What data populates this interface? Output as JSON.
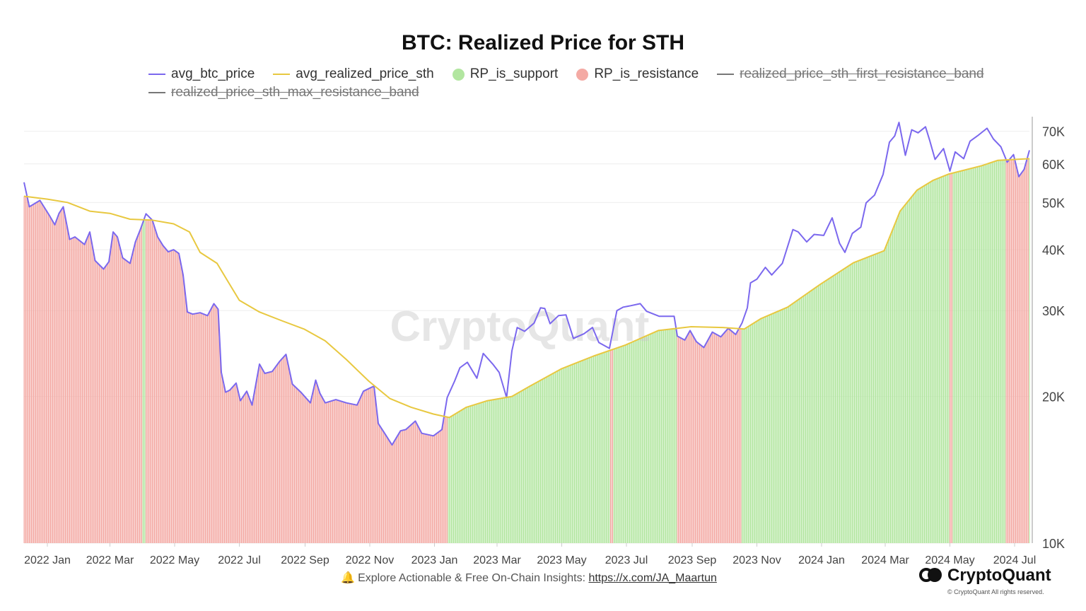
{
  "chart_data": {
    "type": "line",
    "title": "BTC: Realized Price for STH",
    "y_scale": "log",
    "ylim": [
      10000,
      75000
    ],
    "y_ticks": [
      {
        "value": 10000,
        "label": "10K"
      },
      {
        "value": 20000,
        "label": "20K"
      },
      {
        "value": 30000,
        "label": "30K"
      },
      {
        "value": 40000,
        "label": "40K"
      },
      {
        "value": 50000,
        "label": "50K"
      },
      {
        "value": 60000,
        "label": "60K"
      },
      {
        "value": 70000,
        "label": "70K"
      }
    ],
    "x_range": [
      "2021-12-10",
      "2024-07-15"
    ],
    "x_ticks": [
      {
        "date": "2022-01-01",
        "label": "2022 Jan"
      },
      {
        "date": "2022-03-01",
        "label": "2022 Mar"
      },
      {
        "date": "2022-05-01",
        "label": "2022 May"
      },
      {
        "date": "2022-07-01",
        "label": "2022 Jul"
      },
      {
        "date": "2022-09-01",
        "label": "2022 Sep"
      },
      {
        "date": "2022-11-01",
        "label": "2022 Nov"
      },
      {
        "date": "2023-01-01",
        "label": "2023 Jan"
      },
      {
        "date": "2023-03-01",
        "label": "2023 Mar"
      },
      {
        "date": "2023-05-01",
        "label": "2023 May"
      },
      {
        "date": "2023-07-01",
        "label": "2023 Jul"
      },
      {
        "date": "2023-09-01",
        "label": "2023 Sep"
      },
      {
        "date": "2023-11-01",
        "label": "2023 Nov"
      },
      {
        "date": "2024-01-01",
        "label": "2024 Jan"
      },
      {
        "date": "2024-03-01",
        "label": "2024 Mar"
      },
      {
        "date": "2024-05-01",
        "label": "2024 May"
      },
      {
        "date": "2024-07-01",
        "label": "2024 Jul"
      }
    ],
    "legend": [
      {
        "key": "avg_btc_price",
        "label": "avg_btc_price",
        "marker": "line",
        "color": "#7b68ee",
        "visible": true
      },
      {
        "key": "avg_realized_price_sth",
        "label": "avg_realized_price_sth",
        "marker": "line",
        "color": "#e8c840",
        "visible": true
      },
      {
        "key": "RP_is_support",
        "label": "RP_is_support",
        "marker": "dot",
        "color": "#b2e6a0",
        "visible": true
      },
      {
        "key": "RP_is_resistance",
        "label": "RP_is_resistance",
        "marker": "dot",
        "color": "#f4aaa4",
        "visible": true
      },
      {
        "key": "realized_price_sth_first_resistance_band",
        "label": "realized_price_sth_first_resistance_band",
        "marker": "line",
        "color": "#777777",
        "visible": false
      },
      {
        "key": "realized_price_sth_max_resistance_band",
        "label": "realized_price_sth_max_resistance_band",
        "marker": "line",
        "color": "#777777",
        "visible": false
      }
    ],
    "series": [
      {
        "name": "avg_btc_price",
        "color": "#7b68ee",
        "points": [
          [
            "2021-12-10",
            55000
          ],
          [
            "2021-12-15",
            49000
          ],
          [
            "2021-12-25",
            50500
          ],
          [
            "2022-01-03",
            47000
          ],
          [
            "2022-01-08",
            45000
          ],
          [
            "2022-01-12",
            47500
          ],
          [
            "2022-01-16",
            49000
          ],
          [
            "2022-01-22",
            42000
          ],
          [
            "2022-01-27",
            42500
          ],
          [
            "2022-02-05",
            41000
          ],
          [
            "2022-02-10",
            43500
          ],
          [
            "2022-02-15",
            38000
          ],
          [
            "2022-02-23",
            36500
          ],
          [
            "2022-02-28",
            37800
          ],
          [
            "2022-03-04",
            43500
          ],
          [
            "2022-03-08",
            42500
          ],
          [
            "2022-03-13",
            38500
          ],
          [
            "2022-03-20",
            37500
          ],
          [
            "2022-03-25",
            41500
          ],
          [
            "2022-03-30",
            44200
          ],
          [
            "2022-04-04",
            47400
          ],
          [
            "2022-04-10",
            46000
          ],
          [
            "2022-04-15",
            42500
          ],
          [
            "2022-04-20",
            40800
          ],
          [
            "2022-04-25",
            39600
          ],
          [
            "2022-04-30",
            40000
          ],
          [
            "2022-05-05",
            39300
          ],
          [
            "2022-05-09",
            35500
          ],
          [
            "2022-05-13",
            29800
          ],
          [
            "2022-05-18",
            29500
          ],
          [
            "2022-05-25",
            29700
          ],
          [
            "2022-06-01",
            29300
          ],
          [
            "2022-06-07",
            31000
          ],
          [
            "2022-06-11",
            30200
          ],
          [
            "2022-06-14",
            22400
          ],
          [
            "2022-06-18",
            20400
          ],
          [
            "2022-06-22",
            20600
          ],
          [
            "2022-06-28",
            21300
          ],
          [
            "2022-07-02",
            19600
          ],
          [
            "2022-07-08",
            20500
          ],
          [
            "2022-07-13",
            19200
          ],
          [
            "2022-07-20",
            23300
          ],
          [
            "2022-07-25",
            22300
          ],
          [
            "2022-08-01",
            22500
          ],
          [
            "2022-08-08",
            23600
          ],
          [
            "2022-08-14",
            24400
          ],
          [
            "2022-08-20",
            21200
          ],
          [
            "2022-08-28",
            20400
          ],
          [
            "2022-09-06",
            19400
          ],
          [
            "2022-09-11",
            21600
          ],
          [
            "2022-09-15",
            20300
          ],
          [
            "2022-09-20",
            19400
          ],
          [
            "2022-09-30",
            19700
          ],
          [
            "2022-10-10",
            19400
          ],
          [
            "2022-10-20",
            19200
          ],
          [
            "2022-10-26",
            20500
          ],
          [
            "2022-11-01",
            20800
          ],
          [
            "2022-11-05",
            21000
          ],
          [
            "2022-11-09",
            17600
          ],
          [
            "2022-11-15",
            16800
          ],
          [
            "2022-11-22",
            15900
          ],
          [
            "2022-11-30",
            17000
          ],
          [
            "2022-12-05",
            17100
          ],
          [
            "2022-12-14",
            17800
          ],
          [
            "2022-12-20",
            16800
          ],
          [
            "2022-12-31",
            16600
          ],
          [
            "2023-01-08",
            17100
          ],
          [
            "2023-01-13",
            19900
          ],
          [
            "2023-01-20",
            21500
          ],
          [
            "2023-01-25",
            22900
          ],
          [
            "2023-02-01",
            23500
          ],
          [
            "2023-02-10",
            21800
          ],
          [
            "2023-02-16",
            24500
          ],
          [
            "2023-02-25",
            23300
          ],
          [
            "2023-03-03",
            22400
          ],
          [
            "2023-03-10",
            19900
          ],
          [
            "2023-03-15",
            24800
          ],
          [
            "2023-03-20",
            27700
          ],
          [
            "2023-03-27",
            27200
          ],
          [
            "2023-04-05",
            28300
          ],
          [
            "2023-04-11",
            30400
          ],
          [
            "2023-04-15",
            30300
          ],
          [
            "2023-04-20",
            28200
          ],
          [
            "2023-04-28",
            29300
          ],
          [
            "2023-05-05",
            29400
          ],
          [
            "2023-05-12",
            26300
          ],
          [
            "2023-05-22",
            26900
          ],
          [
            "2023-05-30",
            27700
          ],
          [
            "2023-06-05",
            25800
          ],
          [
            "2023-06-15",
            25100
          ],
          [
            "2023-06-22",
            30000
          ],
          [
            "2023-06-28",
            30500
          ],
          [
            "2023-07-05",
            30700
          ],
          [
            "2023-07-14",
            31000
          ],
          [
            "2023-07-20",
            29900
          ],
          [
            "2023-08-01",
            29200
          ],
          [
            "2023-08-15",
            29200
          ],
          [
            "2023-08-18",
            26600
          ],
          [
            "2023-08-25",
            26100
          ],
          [
            "2023-08-30",
            27300
          ],
          [
            "2023-09-05",
            25900
          ],
          [
            "2023-09-12",
            25200
          ],
          [
            "2023-09-20",
            27100
          ],
          [
            "2023-09-28",
            26500
          ],
          [
            "2023-10-05",
            27600
          ],
          [
            "2023-10-12",
            26800
          ],
          [
            "2023-10-18",
            28300
          ],
          [
            "2023-10-23",
            30400
          ],
          [
            "2023-10-26",
            34200
          ],
          [
            "2023-11-01",
            34800
          ],
          [
            "2023-11-09",
            36800
          ],
          [
            "2023-11-15",
            35500
          ],
          [
            "2023-11-25",
            37500
          ],
          [
            "2023-12-05",
            44000
          ],
          [
            "2023-12-10",
            43500
          ],
          [
            "2023-12-18",
            41500
          ],
          [
            "2023-12-25",
            43000
          ],
          [
            "2024-01-03",
            42800
          ],
          [
            "2024-01-11",
            46500
          ],
          [
            "2024-01-18",
            41200
          ],
          [
            "2024-01-23",
            39500
          ],
          [
            "2024-01-30",
            43200
          ],
          [
            "2024-02-07",
            44500
          ],
          [
            "2024-02-12",
            49900
          ],
          [
            "2024-02-20",
            51800
          ],
          [
            "2024-02-28",
            57100
          ],
          [
            "2024-03-05",
            66500
          ],
          [
            "2024-03-10",
            68500
          ],
          [
            "2024-03-14",
            73000
          ],
          [
            "2024-03-20",
            62500
          ],
          [
            "2024-03-26",
            70500
          ],
          [
            "2024-04-01",
            69500
          ],
          [
            "2024-04-08",
            71500
          ],
          [
            "2024-04-12",
            67000
          ],
          [
            "2024-04-17",
            61300
          ],
          [
            "2024-04-25",
            64500
          ],
          [
            "2024-05-01",
            58000
          ],
          [
            "2024-05-06",
            63500
          ],
          [
            "2024-05-14",
            61500
          ],
          [
            "2024-05-20",
            66800
          ],
          [
            "2024-05-27",
            68500
          ],
          [
            "2024-06-05",
            71000
          ],
          [
            "2024-06-11",
            67500
          ],
          [
            "2024-06-18",
            65100
          ],
          [
            "2024-06-24",
            60500
          ],
          [
            "2024-06-30",
            62700
          ],
          [
            "2024-07-05",
            56500
          ],
          [
            "2024-07-10",
            58500
          ],
          [
            "2024-07-15",
            64000
          ]
        ]
      },
      {
        "name": "avg_realized_price_sth",
        "color": "#e8c840",
        "points": [
          [
            "2021-12-10",
            51500
          ],
          [
            "2022-01-01",
            50800
          ],
          [
            "2022-01-20",
            50000
          ],
          [
            "2022-02-10",
            48000
          ],
          [
            "2022-03-01",
            47500
          ],
          [
            "2022-03-20",
            46200
          ],
          [
            "2022-04-10",
            46000
          ],
          [
            "2022-04-30",
            45200
          ],
          [
            "2022-05-15",
            43500
          ],
          [
            "2022-05-25",
            39500
          ],
          [
            "2022-06-10",
            37500
          ],
          [
            "2022-06-20",
            34500
          ],
          [
            "2022-07-01",
            31500
          ],
          [
            "2022-07-20",
            29800
          ],
          [
            "2022-08-10",
            28600
          ],
          [
            "2022-08-31",
            27500
          ],
          [
            "2022-09-20",
            26000
          ],
          [
            "2022-10-10",
            23800
          ],
          [
            "2022-10-31",
            21500
          ],
          [
            "2022-11-20",
            19800
          ],
          [
            "2022-12-10",
            19000
          ],
          [
            "2022-12-31",
            18400
          ],
          [
            "2023-01-15",
            18100
          ],
          [
            "2023-01-31",
            19000
          ],
          [
            "2023-02-20",
            19600
          ],
          [
            "2023-03-15",
            20000
          ],
          [
            "2023-04-01",
            21000
          ],
          [
            "2023-05-01",
            22800
          ],
          [
            "2023-05-31",
            24200
          ],
          [
            "2023-06-30",
            25500
          ],
          [
            "2023-07-31",
            27300
          ],
          [
            "2023-08-31",
            27800
          ],
          [
            "2023-09-30",
            27700
          ],
          [
            "2023-10-20",
            27500
          ],
          [
            "2023-11-05",
            28900
          ],
          [
            "2023-11-30",
            30500
          ],
          [
            "2023-12-31",
            34000
          ],
          [
            "2024-01-31",
            37600
          ],
          [
            "2024-02-29",
            39800
          ],
          [
            "2024-03-15",
            48000
          ],
          [
            "2024-03-31",
            53000
          ],
          [
            "2024-04-15",
            55500
          ],
          [
            "2024-04-30",
            57200
          ],
          [
            "2024-05-31",
            59500
          ],
          [
            "2024-06-15",
            61000
          ],
          [
            "2024-07-15",
            61500
          ]
        ]
      }
    ],
    "regions": [
      {
        "start": "2021-12-10",
        "end": "2022-03-31",
        "state": "RP_is_resistance"
      },
      {
        "start": "2022-03-31",
        "end": "2022-04-03",
        "state": "RP_is_support"
      },
      {
        "start": "2022-04-03",
        "end": "2023-01-13",
        "state": "RP_is_resistance"
      },
      {
        "start": "2023-01-13",
        "end": "2023-06-15",
        "state": "RP_is_support"
      },
      {
        "start": "2023-06-15",
        "end": "2023-06-18",
        "state": "RP_is_resistance"
      },
      {
        "start": "2023-06-18",
        "end": "2023-08-17",
        "state": "RP_is_support"
      },
      {
        "start": "2023-08-17",
        "end": "2023-10-17",
        "state": "RP_is_resistance"
      },
      {
        "start": "2023-10-17",
        "end": "2024-04-30",
        "state": "RP_is_support"
      },
      {
        "start": "2024-04-30",
        "end": "2024-05-03",
        "state": "RP_is_resistance"
      },
      {
        "start": "2024-05-03",
        "end": "2024-06-22",
        "state": "RP_is_support"
      },
      {
        "start": "2024-06-22",
        "end": "2024-07-14",
        "state": "RP_is_resistance"
      },
      {
        "start": "2024-07-14",
        "end": "2024-07-15",
        "state": "RP_is_support"
      }
    ],
    "colors": {
      "support": "#b2e6a0",
      "resistance": "#f4aaa4",
      "grid": "#eeeeee",
      "axis": "#cccccc",
      "tick_text": "#444444"
    },
    "watermark": "CryptoQuant"
  },
  "footer": {
    "text": "Explore Actionable & Free On-Chain Insights: ",
    "link": "https://x.com/JA_Maartun"
  },
  "brand": {
    "name": "CryptoQuant",
    "copyright": "© CryptoQuant All rights reserved."
  }
}
